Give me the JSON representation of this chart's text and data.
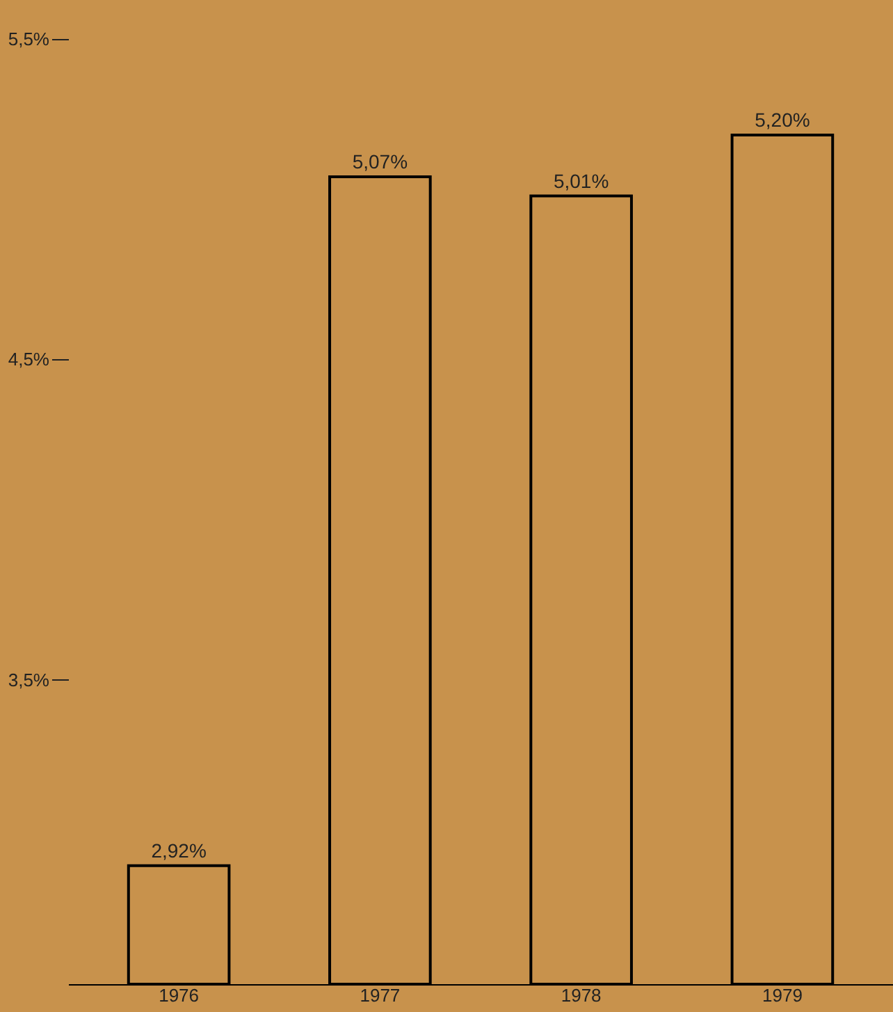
{
  "chart_data": {
    "type": "bar",
    "categories": [
      "1976",
      "1977",
      "1978",
      "1979"
    ],
    "values": [
      2.92,
      5.07,
      5.01,
      5.2
    ],
    "value_labels": [
      "2,92%",
      "5,07%",
      "5,01%",
      "5,20%"
    ],
    "color": "#c8924c",
    "ylim": [
      2.55,
      5.5
    ],
    "yticks": [
      {
        "value": 3.5,
        "label": "3,5%"
      },
      {
        "value": 4.5,
        "label": "4,5%"
      },
      {
        "value": 5.5,
        "label": "5,5%"
      }
    ],
    "grid": false
  }
}
